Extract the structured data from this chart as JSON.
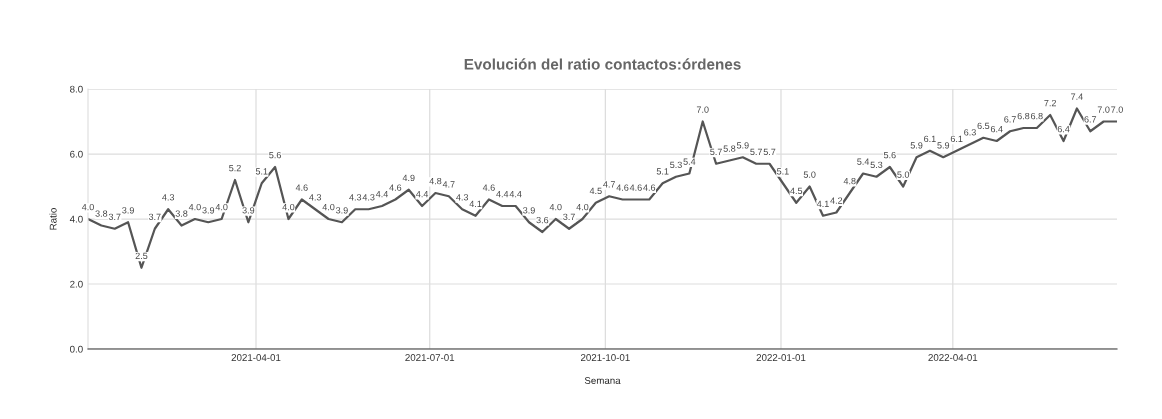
{
  "chart_data": {
    "type": "line",
    "title": "Evolución del ratio contactos:órdenes",
    "xlabel": "Semana",
    "ylabel": "Ratio",
    "x": [
      "2021-01-03",
      "2021-01-10",
      "2021-01-17",
      "2021-01-24",
      "2021-01-31",
      "2021-02-07",
      "2021-02-14",
      "2021-02-21",
      "2021-02-28",
      "2021-03-07",
      "2021-03-14",
      "2021-03-21",
      "2021-03-28",
      "2021-04-04",
      "2021-04-11",
      "2021-04-18",
      "2021-04-25",
      "2021-05-02",
      "2021-05-09",
      "2021-05-16",
      "2021-05-23",
      "2021-05-30",
      "2021-06-06",
      "2021-06-13",
      "2021-06-20",
      "2021-06-27",
      "2021-07-04",
      "2021-07-11",
      "2021-07-18",
      "2021-07-25",
      "2021-08-01",
      "2021-08-08",
      "2021-08-15",
      "2021-08-22",
      "2021-08-29",
      "2021-09-05",
      "2021-09-12",
      "2021-09-19",
      "2021-09-26",
      "2021-10-03",
      "2021-10-10",
      "2021-10-17",
      "2021-10-24",
      "2021-10-31",
      "2021-11-07",
      "2021-11-14",
      "2021-11-21",
      "2021-11-28",
      "2021-12-05",
      "2021-12-12",
      "2021-12-19",
      "2021-12-26",
      "2022-01-02",
      "2022-01-09",
      "2022-01-16",
      "2022-01-23",
      "2022-01-30",
      "2022-02-06",
      "2022-02-13",
      "2022-02-20",
      "2022-02-27",
      "2022-03-06",
      "2022-03-13",
      "2022-03-20",
      "2022-03-27",
      "2022-04-03",
      "2022-04-10",
      "2022-04-17",
      "2022-04-24",
      "2022-05-01",
      "2022-05-08",
      "2022-05-15",
      "2022-05-22",
      "2022-05-29",
      "2022-06-05",
      "2022-06-12",
      "2022-06-19",
      "2022-06-26"
    ],
    "series": [
      {
        "color": "#555555",
        "values": [
          4.0,
          3.8,
          3.7,
          3.9,
          2.5,
          3.7,
          4.3,
          3.8,
          4.0,
          3.9,
          4.0,
          5.2,
          3.9,
          5.1,
          5.6,
          4.0,
          4.6,
          4.3,
          4.0,
          3.9,
          4.3,
          4.3,
          4.4,
          4.6,
          4.9,
          4.4,
          4.8,
          4.7,
          4.3,
          4.1,
          4.6,
          4.4,
          4.4,
          3.9,
          3.6,
          4.0,
          3.7,
          4.0,
          4.5,
          4.7,
          4.6,
          4.6,
          4.6,
          5.1,
          5.3,
          5.4,
          7.0,
          5.7,
          5.8,
          5.9,
          5.7,
          5.7,
          5.1,
          4.5,
          5.0,
          4.1,
          4.2,
          4.8,
          5.4,
          5.3,
          5.6,
          5.0,
          5.9,
          6.1,
          5.9,
          6.1,
          6.3,
          6.5,
          6.4,
          6.7,
          6.8,
          6.8,
          7.2,
          6.4,
          7.4,
          6.7,
          7.0,
          7.0
        ],
        "value_labels": [
          "4.0",
          "3.8",
          "3.7",
          "3.9",
          "2.5",
          "3.7",
          "4.3",
          "3.8",
          "4.0",
          "3.9",
          "4.0",
          "5.2",
          "3.9",
          "5.1",
          "5.6",
          "4.0",
          "4.6",
          "4.3",
          "4.0",
          "3.9",
          "4.3",
          "4.3",
          "4.4",
          "4.6",
          "4.9",
          "4.4",
          "4.8",
          "4.7",
          "4.3",
          "4.1",
          "4.6",
          "4.4",
          "4.4",
          "3.9",
          "3.6",
          "4.0",
          "3.7",
          "4.0",
          "4.5",
          "4.7",
          "4.6",
          "4.6",
          "4.6",
          "5.1",
          "5.3",
          "5.4",
          "7.0",
          "5.7",
          "5.8",
          "5.9",
          "5.7",
          "5.7",
          "5.1",
          "4.5",
          "5.0",
          "4.1",
          "4.2",
          "4.8",
          "5.4",
          "5.3",
          "5.6",
          "5.0",
          "5.9",
          "6.1",
          "5.9",
          "6.1",
          "6.3",
          "6.5",
          "6.4",
          "6.7",
          "6.8",
          "6.8",
          "7.2",
          "6.4",
          "7.4",
          "6.7",
          "7.0",
          "7.0"
        ]
      }
    ],
    "xlim": [
      "2021-01-03",
      "2022-06-26"
    ],
    "xticks": [
      "2021-04-01",
      "2021-07-01",
      "2021-10-01",
      "2022-01-01",
      "2022-04-01"
    ],
    "ylim": [
      0,
      8
    ],
    "yticks": [
      {
        "value": 0,
        "label": "0.0"
      },
      {
        "value": 2,
        "label": "2.0"
      },
      {
        "value": 4,
        "label": "4.0"
      },
      {
        "value": 6,
        "label": "6.0"
      },
      {
        "value": 8,
        "label": "8.0"
      }
    ],
    "grid": true
  }
}
